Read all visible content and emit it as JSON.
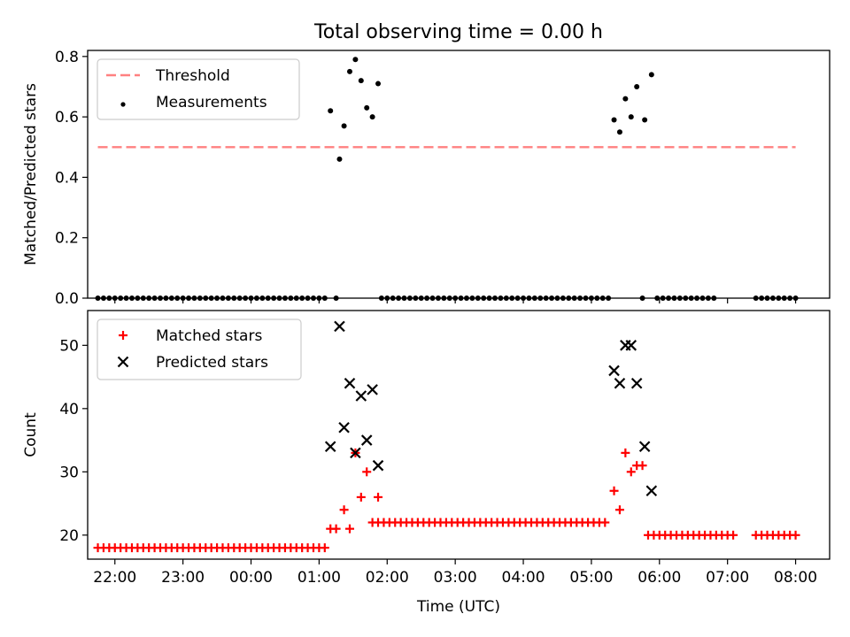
{
  "figure": {
    "title": "Total observing time = 0.00 h"
  },
  "chart_data": [
    {
      "type": "scatter",
      "ylabel": "Matched/Predicted stars",
      "xlabel": "",
      "xlim": [
        21.6,
        8.5
      ],
      "ylim": [
        0,
        0.82
      ],
      "x_ticks": [
        "22:00",
        "23:00",
        "00:00",
        "01:00",
        "02:00",
        "03:00",
        "04:00",
        "05:00",
        "06:00",
        "07:00",
        "08:00"
      ],
      "y_ticks": [
        "0.0",
        "0.2",
        "0.4",
        "0.6",
        "0.8"
      ],
      "legend": {
        "position": "top-left"
      },
      "threshold": {
        "name": "Threshold",
        "value": 0.5,
        "x_start": "21:45",
        "x_end": "08:00",
        "color": "#ff8080"
      },
      "series": [
        {
          "name": "Measurements",
          "color": "#000000",
          "marker": "dot",
          "zero_segments": [
            [
              "21:45",
              "01:05"
            ],
            [
              "01:55",
              "05:15"
            ],
            [
              "05:58",
              "06:48"
            ],
            [
              "07:25",
              "08:00"
            ]
          ],
          "zero_extra": [
            "01:15",
            "05:45"
          ],
          "points": [
            [
              "01:10",
              0.62
            ],
            [
              "01:18",
              0.46
            ],
            [
              "01:22",
              0.57
            ],
            [
              "01:27",
              0.75
            ],
            [
              "01:32",
              0.79
            ],
            [
              "01:37",
              0.72
            ],
            [
              "01:42",
              0.63
            ],
            [
              "01:47",
              0.6
            ],
            [
              "01:52",
              0.71
            ],
            [
              "05:20",
              0.59
            ],
            [
              "05:25",
              0.55
            ],
            [
              "05:30",
              0.66
            ],
            [
              "05:35",
              0.6
            ],
            [
              "05:40",
              0.7
            ],
            [
              "05:47",
              0.59
            ],
            [
              "05:53",
              0.74
            ]
          ]
        }
      ]
    },
    {
      "type": "scatter",
      "ylabel": "Count",
      "xlabel": "Time (UTC)",
      "xlim": [
        21.6,
        8.5
      ],
      "ylim": [
        16.2,
        55.5
      ],
      "x_ticks": [
        "22:00",
        "23:00",
        "00:00",
        "01:00",
        "02:00",
        "03:00",
        "04:00",
        "05:00",
        "06:00",
        "07:00",
        "08:00"
      ],
      "y_ticks": [
        "20",
        "30",
        "40",
        "50"
      ],
      "legend": {
        "position": "top-left"
      },
      "series": [
        {
          "name": "Matched stars",
          "color": "#ff0000",
          "marker": "plus",
          "baseline_segments": [
            [
              "21:45",
              "01:05",
              18
            ],
            [
              "01:52",
              "05:15",
              22
            ],
            [
              "05:50",
              "07:05",
              20
            ],
            [
              "07:25",
              "08:00",
              20
            ]
          ],
          "points": [
            [
              "01:10",
              21
            ],
            [
              "01:15",
              21
            ],
            [
              "01:22",
              24
            ],
            [
              "01:27",
              21
            ],
            [
              "01:32",
              33
            ],
            [
              "01:37",
              26
            ],
            [
              "01:42",
              30
            ],
            [
              "01:47",
              22
            ],
            [
              "01:52",
              26
            ],
            [
              "05:20",
              27
            ],
            [
              "05:25",
              24
            ],
            [
              "05:30",
              33
            ],
            [
              "05:35",
              30
            ],
            [
              "05:40",
              31
            ],
            [
              "05:45",
              31
            ]
          ]
        },
        {
          "name": "Predicted stars",
          "color": "#000000",
          "marker": "x",
          "points": [
            [
              "01:10",
              34
            ],
            [
              "01:18",
              53
            ],
            [
              "01:22",
              37
            ],
            [
              "01:27",
              44
            ],
            [
              "01:32",
              33
            ],
            [
              "01:37",
              42
            ],
            [
              "01:42",
              35
            ],
            [
              "01:47",
              43
            ],
            [
              "01:52",
              31
            ],
            [
              "05:20",
              46
            ],
            [
              "05:25",
              44
            ],
            [
              "05:30",
              50
            ],
            [
              "05:35",
              50
            ],
            [
              "05:40",
              44
            ],
            [
              "05:47",
              34
            ],
            [
              "05:53",
              27
            ]
          ]
        }
      ]
    }
  ]
}
